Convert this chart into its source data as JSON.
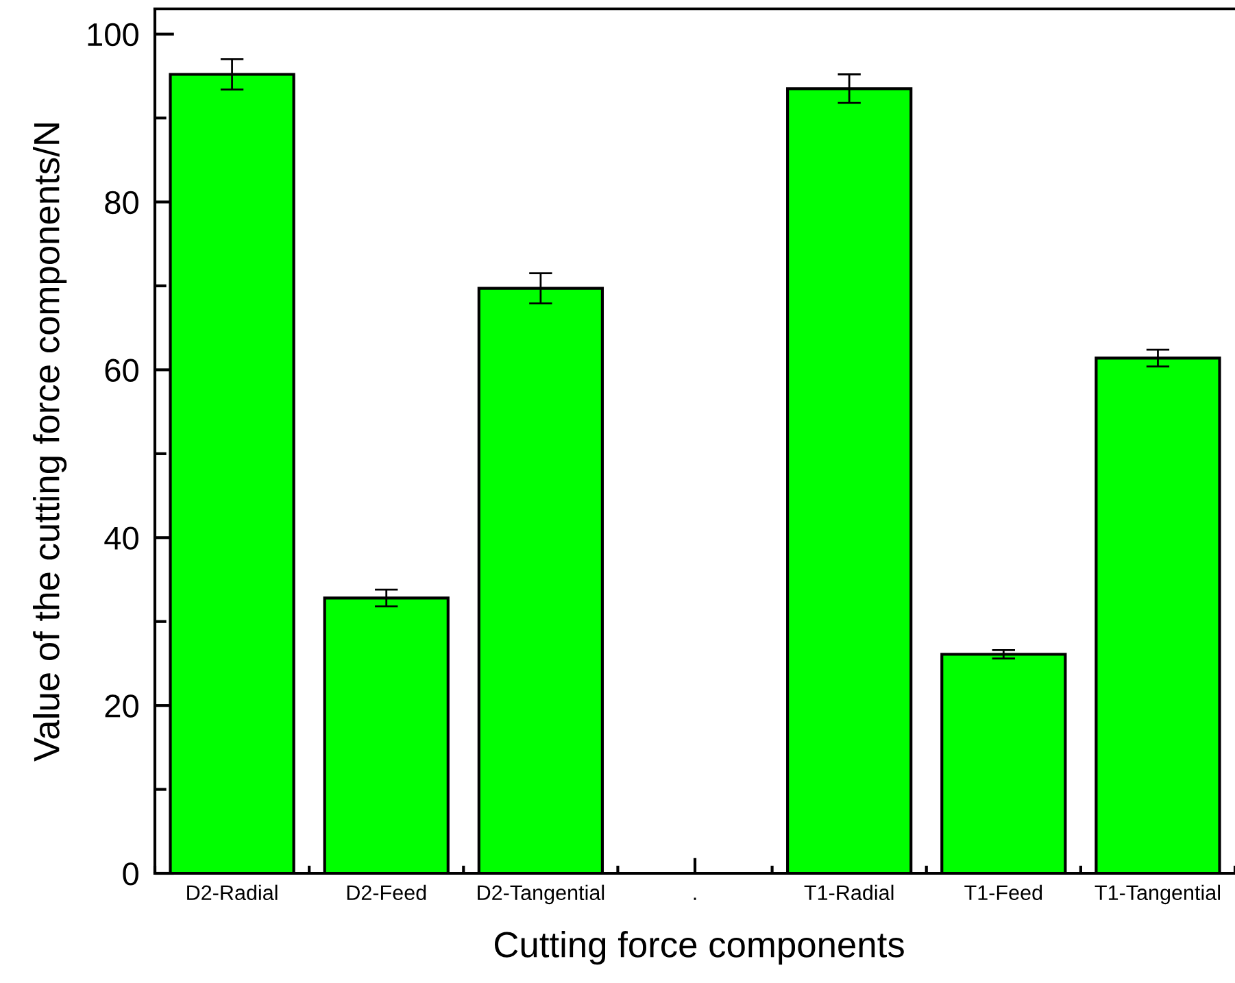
{
  "chart_data": {
    "type": "bar",
    "xlabel": "Cutting force components",
    "ylabel": "Value of the cutting force components/N",
    "categories": [
      "D2-Radial",
      "D2-Feed",
      "D2-Tangential",
      ".",
      "T1-Radial",
      "T1-Feed",
      "T1-Tangential"
    ],
    "values": [
      95.2,
      32.8,
      69.7,
      null,
      93.5,
      26.1,
      61.4
    ],
    "errors": [
      1.8,
      1.0,
      1.8,
      null,
      1.7,
      0.5,
      1.0
    ],
    "color": "#00ff00",
    "ylim": [
      0,
      103
    ],
    "yticks": [
      0,
      20,
      40,
      60,
      80,
      100
    ],
    "grid": false,
    "legend": false
  }
}
